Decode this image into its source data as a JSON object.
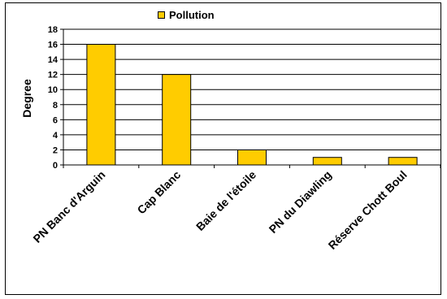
{
  "chart_data": {
    "type": "bar",
    "categories": [
      "PN Banc d'Arguin",
      "Cap Blanc",
      "Baie de l'étoile",
      "PN du Diawling",
      "Réserve Chott Boul"
    ],
    "series": [
      {
        "name": "Pollution",
        "values": [
          16,
          12,
          2,
          1,
          1
        ]
      }
    ],
    "title": "",
    "xlabel": "",
    "ylabel": "Degree",
    "ylim": [
      0,
      18
    ],
    "yticks": [
      0,
      2,
      4,
      6,
      8,
      10,
      12,
      14,
      16,
      18
    ],
    "grid": true,
    "legend_position": "top-center",
    "bar_color": "#FFCC00",
    "outline_color": "#000000"
  }
}
